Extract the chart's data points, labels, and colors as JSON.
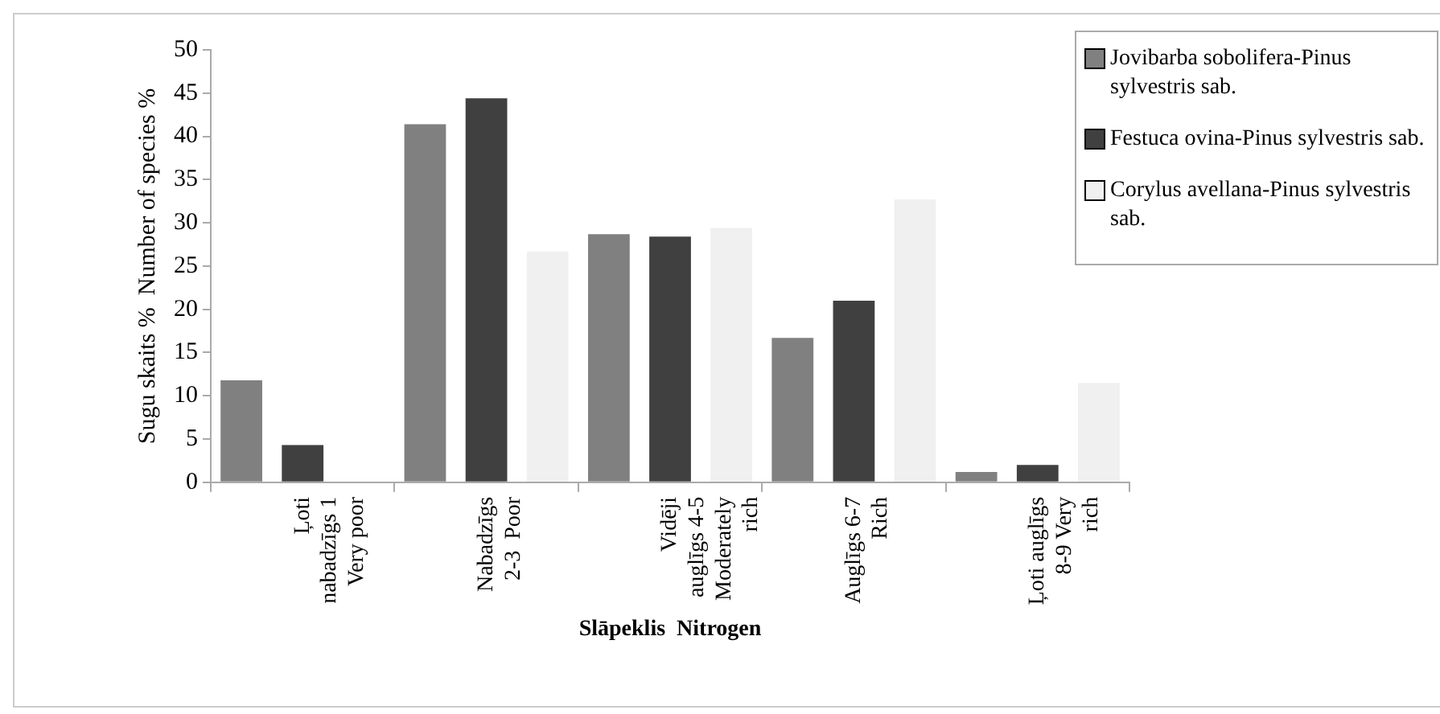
{
  "chart_data": {
    "type": "bar",
    "xlabel": "Slāpeklis  Nitrogen",
    "ylabel": "Sugu skaits %  Number of species %",
    "categories": [
      "Ļoti\nnabadzīgs 1\nVery poor",
      "Nabadzīgs\n2-3  Poor",
      "Vidēji\nauglīgs 4-5\nModerately\nrich",
      "Auglīgs 6-7\nRich",
      "Ļoti auglīgs\n8-9 Very\nrich"
    ],
    "series": [
      {
        "name": "Jovibarba sobolifera-Pinus sylvestris sab.",
        "color": "#808080",
        "values": [
          11.8,
          41.4,
          28.7,
          16.7,
          1.2
        ]
      },
      {
        "name": "Festuca ovina-Pinus sylvestris sab.",
        "color": "#404040",
        "values": [
          4.3,
          44.4,
          28.4,
          21.0,
          2.0
        ]
      },
      {
        "name": "Corylus avellana-Pinus sylvestris sab.",
        "color": "#f0f0f0",
        "values": [
          0,
          26.7,
          29.4,
          32.7,
          11.5
        ]
      }
    ],
    "ylim": [
      0,
      50
    ],
    "yticks": [
      0,
      5,
      10,
      15,
      20,
      25,
      30,
      35,
      40,
      45,
      50
    ],
    "grid": false,
    "legend": "top right"
  }
}
